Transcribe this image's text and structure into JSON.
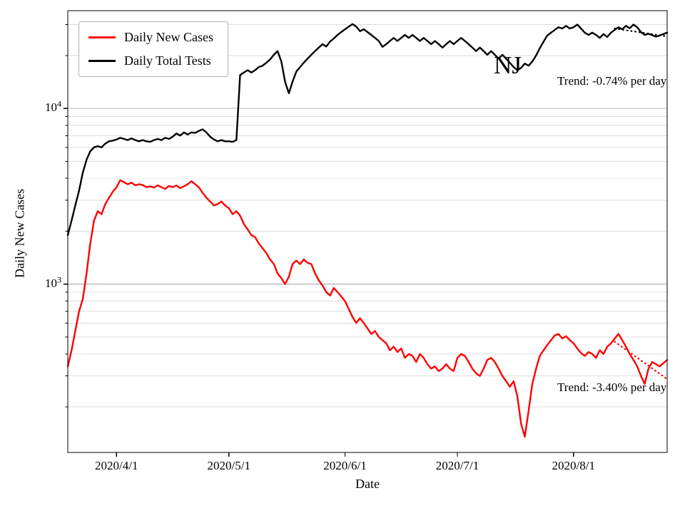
{
  "chart_data": {
    "type": "line",
    "state_label": "NJ",
    "xlabel": "Date",
    "ylabel": "Daily New Cases",
    "yscale": "log",
    "grid": "horizontal-major-and-minor",
    "legend_position": "upper-left",
    "x_unit": "day-index",
    "xlim": [
      0,
      160
    ],
    "ylim": [
      110,
      36000
    ],
    "x_ticks": [
      {
        "day": 13,
        "label": "2020/4/1"
      },
      {
        "day": 43,
        "label": "2020/5/1"
      },
      {
        "day": 74,
        "label": "2020/6/1"
      },
      {
        "day": 104,
        "label": "2020/7/1"
      },
      {
        "day": 135,
        "label": "2020/8/1"
      }
    ],
    "y_major_ticks": [
      {
        "exponent": 3
      },
      {
        "exponent": 4
      }
    ],
    "series": [
      {
        "name": "Daily New Cases",
        "color": "#ff0000",
        "x_start_day": 0,
        "values": [
          340,
          420,
          540,
          700,
          820,
          1150,
          1700,
          2300,
          2600,
          2500,
          2850,
          3100,
          3350,
          3560,
          3900,
          3800,
          3700,
          3780,
          3650,
          3700,
          3660,
          3560,
          3600,
          3540,
          3650,
          3560,
          3480,
          3620,
          3560,
          3640,
          3520,
          3600,
          3700,
          3850,
          3700,
          3550,
          3300,
          3100,
          2950,
          2800,
          2850,
          2950,
          2800,
          2700,
          2500,
          2600,
          2450,
          2200,
          2050,
          1900,
          1850,
          1700,
          1600,
          1500,
          1380,
          1300,
          1150,
          1080,
          1000,
          1100,
          1300,
          1360,
          1300,
          1380,
          1320,
          1300,
          1150,
          1050,
          980,
          900,
          860,
          950,
          900,
          850,
          800,
          720,
          650,
          600,
          640,
          600,
          560,
          520,
          540,
          500,
          480,
          460,
          420,
          440,
          410,
          430,
          380,
          400,
          390,
          360,
          400,
          380,
          350,
          330,
          340,
          320,
          330,
          350,
          330,
          320,
          380,
          400,
          390,
          360,
          330,
          310,
          300,
          330,
          370,
          380,
          360,
          330,
          300,
          280,
          260,
          280,
          230,
          160,
          135,
          190,
          270,
          330,
          390,
          420,
          450,
          480,
          510,
          520,
          490,
          505,
          480,
          460,
          430,
          405,
          390,
          410,
          400,
          380,
          420,
          400,
          440,
          460,
          490,
          520,
          480,
          440,
          400,
          370,
          340,
          300,
          270,
          330,
          360,
          350,
          340,
          355,
          370
        ]
      },
      {
        "name": "Daily Total Tests",
        "color": "#000000",
        "x_start_day": 0,
        "values": [
          1900,
          2300,
          2800,
          3400,
          4300,
          5100,
          5700,
          6000,
          6100,
          6000,
          6300,
          6500,
          6550,
          6650,
          6800,
          6700,
          6600,
          6750,
          6600,
          6500,
          6600,
          6500,
          6450,
          6600,
          6700,
          6600,
          6800,
          6700,
          6900,
          7200,
          7000,
          7300,
          7100,
          7300,
          7250,
          7450,
          7600,
          7300,
          6900,
          6650,
          6500,
          6600,
          6500,
          6500,
          6450,
          6600,
          15500,
          16000,
          16500,
          16000,
          16500,
          17200,
          17500,
          18200,
          19000,
          20200,
          21200,
          18500,
          14200,
          12200,
          14200,
          16200,
          17200,
          18200,
          19200,
          20200,
          21200,
          22200,
          23200,
          22500,
          24000,
          25000,
          26200,
          27200,
          28200,
          29200,
          30200,
          29200,
          27500,
          28200,
          27200,
          26200,
          25200,
          24200,
          22400,
          23200,
          24200,
          25200,
          24200,
          25200,
          26200,
          25200,
          26200,
          25200,
          24200,
          25200,
          24200,
          23200,
          24200,
          23200,
          22200,
          23200,
          24200,
          23200,
          24200,
          25200,
          24200,
          23200,
          22200,
          21200,
          22200,
          21200,
          20200,
          21200,
          20200,
          19200,
          20200,
          19200,
          18200,
          17200,
          16500,
          17000,
          18000,
          17500,
          18500,
          20000,
          22000,
          24000,
          26000,
          27000,
          28000,
          29000,
          28500,
          29500,
          28500,
          29000,
          30000,
          28500,
          27000,
          26200,
          27000,
          26200,
          25200,
          26500,
          25500,
          27000,
          28000,
          29000,
          28200,
          29500,
          28600,
          30000,
          29000,
          27200,
          26200,
          26600,
          26100,
          25600,
          26000,
          26500,
          27000
        ]
      }
    ],
    "trends": [
      {
        "label": "Trend: -0.74% per day",
        "color": "#000000",
        "style": "dotted",
        "x": [
          146,
          160
        ],
        "values": [
          28500,
          25700
        ]
      },
      {
        "label": "Trend: -3.40% per day",
        "color": "#ff0000",
        "style": "dotted",
        "x": [
          146,
          160
        ],
        "values": [
          470,
          288
        ]
      }
    ]
  }
}
